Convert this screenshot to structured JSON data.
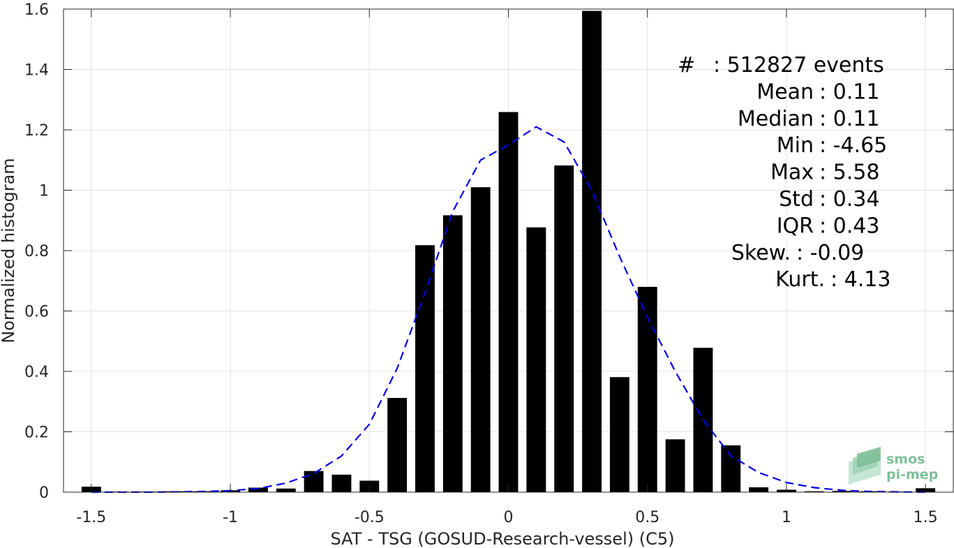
{
  "chart_data": {
    "type": "bar",
    "xlabel": "SAT - TSG (GOSUD-Research-vessel) (C5)",
    "ylabel": "Normalized histogram",
    "xlim": [
      -1.6,
      1.6
    ],
    "ylim": [
      0,
      1.6
    ],
    "grid": true,
    "xticks": [
      "-1.5",
      "-1",
      "-0.5",
      "0",
      "0.5",
      "1",
      "1.5"
    ],
    "xtick_values": [
      -1.5,
      -1,
      -0.5,
      0,
      0.5,
      1,
      1.5
    ],
    "yticks": [
      "0",
      "0.2",
      "0.4",
      "0.6",
      "0.8",
      "1",
      "1.2",
      "1.4",
      "1.6"
    ],
    "ytick_values": [
      0,
      0.2,
      0.4,
      0.6,
      0.8,
      1,
      1.2,
      1.4,
      1.6
    ],
    "bar_width": 0.07,
    "bars": {
      "x": [
        -1.5,
        -1.4,
        -1.3,
        -1.2,
        -1.1,
        -1.0,
        -0.9,
        -0.8,
        -0.7,
        -0.6,
        -0.5,
        -0.4,
        -0.3,
        -0.2,
        -0.1,
        0.0,
        0.1,
        0.2,
        0.3,
        0.4,
        0.5,
        0.6,
        0.7,
        0.8,
        0.9,
        1.0,
        1.1,
        1.2,
        1.3,
        1.4,
        1.5
      ],
      "values": [
        0.018,
        0.002,
        0.002,
        0.003,
        0.003,
        0.006,
        0.015,
        0.012,
        0.07,
        0.058,
        0.038,
        0.312,
        0.818,
        0.917,
        1.01,
        1.259,
        0.877,
        1.082,
        1.594,
        0.381,
        0.68,
        0.175,
        0.478,
        0.155,
        0.016,
        0.008,
        0.003,
        0.004,
        0.003,
        0.002,
        0.013
      ],
      "color": "#000000"
    },
    "fit_curve": {
      "style": "dashed",
      "color": "#0000e6",
      "x": [
        -1.5,
        -1.4,
        -1.3,
        -1.2,
        -1.1,
        -1.0,
        -0.9,
        -0.8,
        -0.7,
        -0.6,
        -0.5,
        -0.4,
        -0.3,
        -0.2,
        -0.1,
        0.0,
        0.1,
        0.2,
        0.3,
        0.4,
        0.5,
        0.6,
        0.7,
        0.8,
        0.9,
        1.0,
        1.1,
        1.2,
        1.3,
        1.4,
        1.5
      ],
      "y": [
        0.0,
        0.0,
        0.0,
        0.001,
        0.002,
        0.005,
        0.012,
        0.03,
        0.062,
        0.12,
        0.225,
        0.41,
        0.66,
        0.93,
        1.1,
        1.15,
        1.21,
        1.16,
        1.0,
        0.78,
        0.58,
        0.4,
        0.24,
        0.12,
        0.065,
        0.032,
        0.015,
        0.006,
        0.002,
        0.001,
        0.0
      ]
    },
    "stats": [
      {
        "label": "#  ",
        "value": ": 512827 events"
      },
      {
        "label": "Mean",
        "value": ": 0.11"
      },
      {
        "label": "Median",
        "value": ": 0.11"
      },
      {
        "label": "Min",
        "value": ": -4.65"
      },
      {
        "label": "Max",
        "value": ": 5.58"
      },
      {
        "label": "Std",
        "value": ": 0.34"
      },
      {
        "label": "IQR",
        "value": ": 0.43"
      },
      {
        "label": "Skew.",
        "value": ": -0.09"
      },
      {
        "label": "Kurt.",
        "value": ": 4.13"
      }
    ]
  },
  "logo": {
    "line1": "smos",
    "line2": "pi-mep",
    "color": "#7fbf9a"
  }
}
